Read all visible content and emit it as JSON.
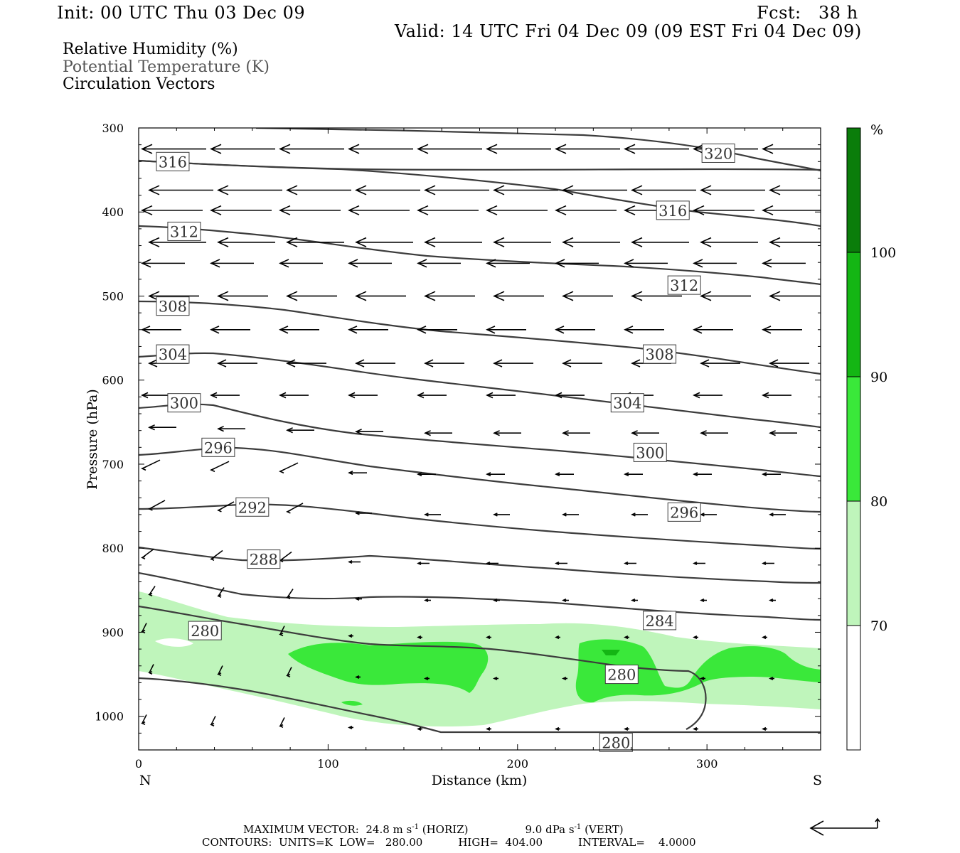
{
  "header": {
    "init": "Init: 00 UTC Thu 03 Dec 09",
    "fcst": "Fcst:   38 h",
    "valid": "Valid: 14 UTC Fri 04 Dec 09 (09 EST Fri 04 Dec 09)"
  },
  "legend_lines": [
    {
      "text": "Relative Humidity (%)",
      "color": "#000000"
    },
    {
      "text": "Potential Temperature (K)",
      "color": "#555555"
    },
    {
      "text": "Circulation Vectors",
      "color": "#000000"
    }
  ],
  "footer": {
    "max_vector_a": "MAXIMUM VECTOR:  24.8 m s",
    "max_vector_b": " (HORIZ)",
    "max_vector_c": "9.0 dPa s",
    "max_vector_d": " (VERT)",
    "sup": "-1",
    "contours_a": "CONTOURS:  UNITS=K  LOW=   280.00",
    "contours_b": "HIGH=  404.00",
    "contours_c": "INTERVAL=    4.0000"
  },
  "chart_data": {
    "type": "cross-section",
    "xlabel": "Distance (km)",
    "ylabel": "Pressure (hPa)",
    "x_ticks": [
      0,
      100,
      200,
      300
    ],
    "y_ticks": [
      300,
      400,
      500,
      600,
      700,
      800,
      900,
      1000
    ],
    "xlim": [
      0,
      360
    ],
    "ylim": [
      300,
      1040
    ],
    "left_label": "N",
    "right_label": "S",
    "colorbar": {
      "unit": "%",
      "levels": [
        70,
        80,
        90,
        100
      ],
      "colors": [
        "#ffffff",
        "#bff5bb",
        "#3ae83a",
        "#14b614",
        "#0a7d0a"
      ]
    },
    "theta_contours": [
      {
        "value": 280,
        "label_positions": [
          [
            35,
            898
          ],
          [
            255,
            950
          ],
          [
            252,
            1031
          ]
        ]
      },
      {
        "value": 284,
        "label_positions": [
          [
            275,
            886
          ]
        ]
      },
      {
        "value": 288,
        "label_positions": [
          [
            66,
            813
          ]
        ]
      },
      {
        "value": 292,
        "label_positions": [
          [
            60,
            751
          ]
        ]
      },
      {
        "value": 296,
        "label_positions": [
          [
            42,
            680
          ],
          [
            288,
            757
          ]
        ]
      },
      {
        "value": 300,
        "label_positions": [
          [
            24,
            627
          ],
          [
            270,
            686
          ]
        ]
      },
      {
        "value": 304,
        "label_positions": [
          [
            18,
            569
          ],
          [
            258,
            627
          ]
        ]
      },
      {
        "value": 308,
        "label_positions": [
          [
            18,
            512
          ],
          [
            275,
            569
          ]
        ]
      },
      {
        "value": 312,
        "label_positions": [
          [
            24,
            423
          ],
          [
            288,
            487
          ]
        ]
      },
      {
        "value": 316,
        "label_positions": [
          [
            18,
            340
          ],
          [
            282,
            398
          ]
        ]
      },
      {
        "value": 320,
        "label_positions": [
          [
            306,
            330
          ]
        ]
      }
    ]
  }
}
